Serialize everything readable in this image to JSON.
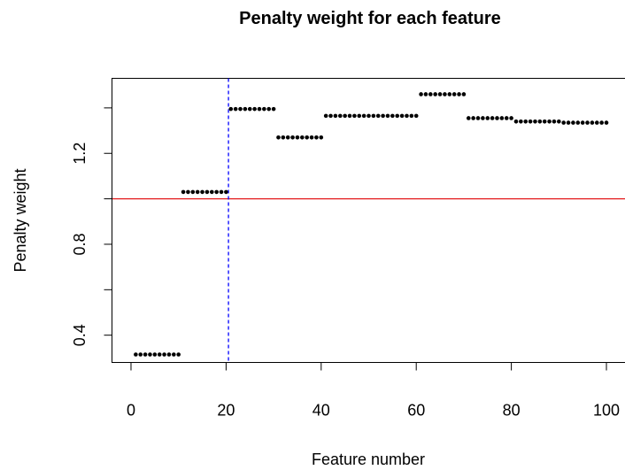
{
  "chart_data": {
    "type": "scatter",
    "title": "Penalty weight for each feature",
    "xlabel": "Feature number",
    "ylabel": "Penalty weight",
    "xlim": [
      -4,
      104
    ],
    "ylim": [
      0.28,
      1.53
    ],
    "xticks": [
      0,
      20,
      40,
      60,
      80,
      100
    ],
    "yticks": [
      0.4,
      0.6,
      0.8,
      1.0,
      1.2,
      1.4
    ],
    "ytick_labels": [
      "0.4",
      "",
      "0.8",
      "",
      "1.2",
      ""
    ],
    "point_color": "#000000",
    "reference_lines": [
      {
        "orientation": "horizontal",
        "value": 1.0,
        "color": "#e31a1c",
        "style": "solid"
      },
      {
        "orientation": "vertical",
        "value": 20.5,
        "color": "#0000ff",
        "style": "dashed"
      }
    ],
    "groups": [
      {
        "x_from": 1,
        "x_to": 10,
        "y": 0.315
      },
      {
        "x_from": 11,
        "x_to": 20,
        "y": 1.03
      },
      {
        "x_from": 21,
        "x_to": 30,
        "y": 1.395
      },
      {
        "x_from": 31,
        "x_to": 40,
        "y": 1.27
      },
      {
        "x_from": 41,
        "x_to": 60,
        "y": 1.365
      },
      {
        "x_from": 61,
        "x_to": 70,
        "y": 1.46
      },
      {
        "x_from": 71,
        "x_to": 80,
        "y": 1.355
      },
      {
        "x_from": 81,
        "x_to": 90,
        "y": 1.34
      },
      {
        "x_from": 91,
        "x_to": 100,
        "y": 1.335
      }
    ]
  }
}
